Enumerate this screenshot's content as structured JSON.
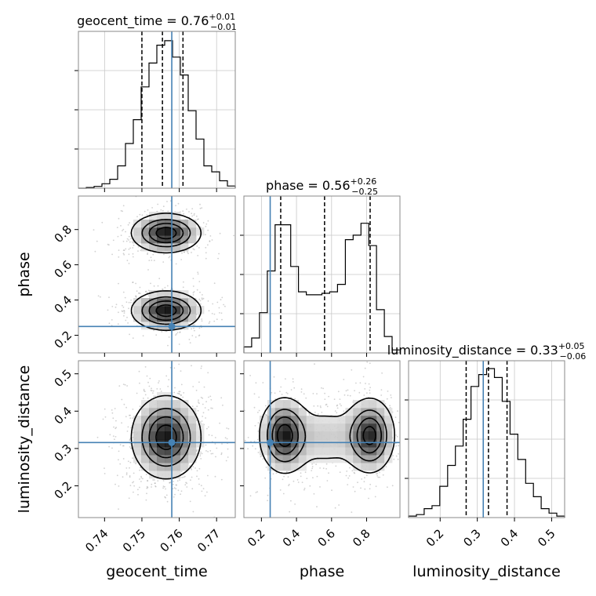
{
  "chart_data": {
    "type": "corner",
    "parameters": [
      {
        "name": "geocent_time",
        "axis_label": "geocent_time",
        "median": "0.76",
        "plus": "+0.01",
        "minus": "−0.01",
        "range": [
          0.733,
          0.775
        ],
        "ticks": [
          "0.74",
          "0.75",
          "0.76",
          "0.77"
        ],
        "tick_values": [
          0.74,
          0.75,
          0.76,
          0.77
        ],
        "quantiles": [
          0.75,
          0.7555,
          0.761
        ],
        "truth": 0.758
      },
      {
        "name": "phase",
        "axis_label": "phase",
        "median": "0.56",
        "plus": "+0.26",
        "minus": "−0.25",
        "range": [
          0.1,
          0.99
        ],
        "ticks": [
          "0.2",
          "0.4",
          "0.6",
          "0.8"
        ],
        "tick_values": [
          0.2,
          0.4,
          0.6,
          0.8
        ],
        "quantiles": [
          0.31,
          0.56,
          0.82
        ],
        "truth": 0.25
      },
      {
        "name": "luminosity_distance",
        "axis_label": "luminosity_distance",
        "median": "0.33",
        "plus": "+0.05",
        "minus": "−0.06",
        "range": [
          0.115,
          0.535
        ],
        "ticks": [
          "0.2",
          "0.3",
          "0.4",
          "0.5"
        ],
        "tick_values": [
          0.2,
          0.3,
          0.4,
          0.5
        ],
        "quantiles": [
          0.27,
          0.33,
          0.38
        ],
        "truth": 0.316
      }
    ],
    "truth_color": "#4682b4",
    "histograms": [
      [
        0.0,
        0.005,
        0.012,
        0.03,
        0.06,
        0.15,
        0.3,
        0.46,
        0.68,
        0.84,
        0.96,
        0.99,
        0.88,
        0.76,
        0.52,
        0.33,
        0.15,
        0.11,
        0.05,
        0.015
      ],
      [
        0.04,
        0.1,
        0.27,
        0.55,
        0.86,
        0.86,
        0.58,
        0.41,
        0.39,
        0.39,
        0.4,
        0.41,
        0.46,
        0.76,
        0.79,
        0.87,
        0.72,
        0.29,
        0.11,
        0.02
      ],
      [
        0.01,
        0.02,
        0.06,
        0.08,
        0.21,
        0.35,
        0.48,
        0.66,
        0.88,
        0.96,
        1.0,
        0.94,
        0.78,
        0.56,
        0.39,
        0.23,
        0.14,
        0.06,
        0.03,
        0.01
      ]
    ],
    "joint_modes": [
      {
        "x": 0,
        "y": 1,
        "components": [
          {
            "mx": 0.7565,
            "my": 0.78,
            "sx": 0.0046,
            "sy": 0.055,
            "w": 1.0
          },
          {
            "mx": 0.7565,
            "my": 0.34,
            "sx": 0.0046,
            "sy": 0.055,
            "w": 1.0
          }
        ]
      },
      {
        "x": 0,
        "y": 2,
        "components": [
          {
            "mx": 0.7565,
            "my": 0.33,
            "sx": 0.0046,
            "sy": 0.055,
            "w": 1.0
          }
        ]
      },
      {
        "x": 1,
        "y": 2,
        "components": [
          {
            "mx": 0.33,
            "my": 0.335,
            "sx": 0.07,
            "sy": 0.05,
            "w": 1.0
          },
          {
            "mx": 0.82,
            "my": 0.335,
            "sx": 0.07,
            "sy": 0.05,
            "w": 0.95
          },
          {
            "mx": 0.57,
            "my": 0.33,
            "sx": 0.13,
            "sy": 0.05,
            "w": 0.25
          }
        ]
      }
    ],
    "grid": true
  }
}
